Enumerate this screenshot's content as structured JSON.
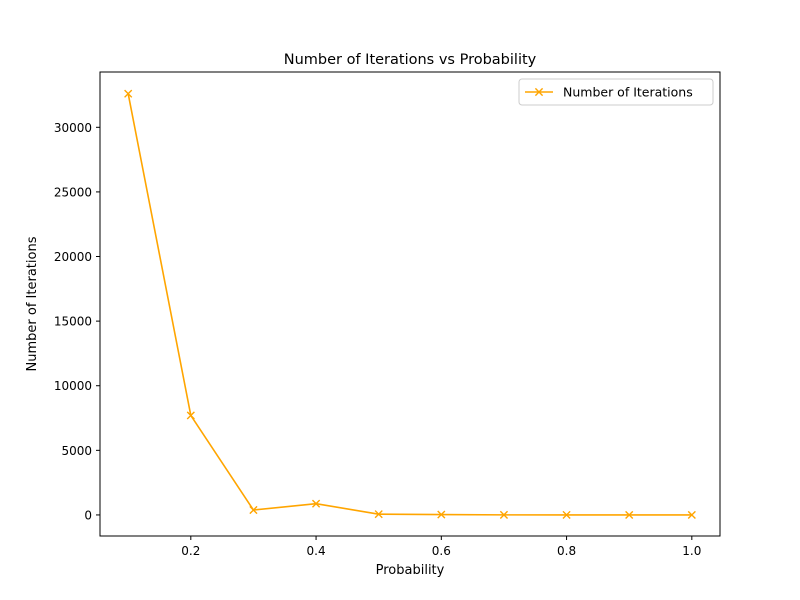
{
  "chart_data": {
    "type": "line",
    "title": "Number of Iterations vs Probability",
    "xlabel": "Probability",
    "ylabel": "Number of Iterations",
    "xlim": [
      0.055,
      1.045
    ],
    "ylim": [
      -1630,
      34280
    ],
    "xticks": [
      0.2,
      0.4,
      0.6,
      0.8,
      1.0
    ],
    "xtick_labels": [
      "0.2",
      "0.4",
      "0.6",
      "0.8",
      "1.0"
    ],
    "yticks": [
      0,
      5000,
      10000,
      15000,
      20000,
      25000,
      30000
    ],
    "ytick_labels": [
      "0",
      "5000",
      "10000",
      "15000",
      "20000",
      "25000",
      "30000"
    ],
    "grid": false,
    "legend_position": "top-right",
    "series": [
      {
        "name": "Number of Iterations",
        "color": "#ffa500",
        "marker": "x",
        "x": [
          0.1,
          0.2,
          0.3,
          0.4,
          0.5,
          0.6,
          0.7,
          0.8,
          0.9,
          1.0
        ],
        "y": [
          32600,
          7700,
          380,
          870,
          60,
          30,
          5,
          2,
          1,
          1
        ]
      }
    ]
  }
}
